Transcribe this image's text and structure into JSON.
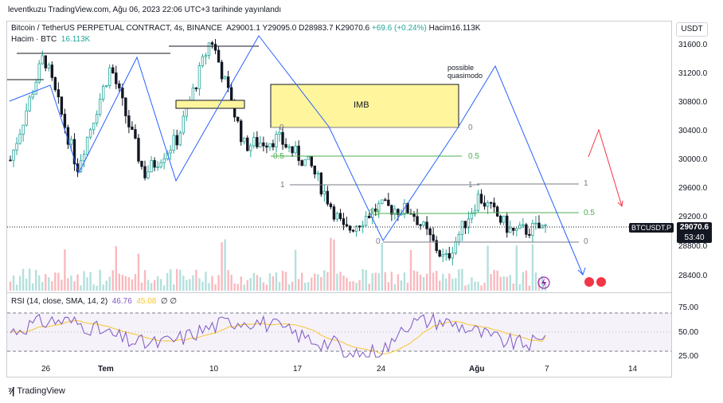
{
  "header": {
    "publish_line": "leventkuzu TradingView.com, Ağu 06, 2023 22:06 UTC+3 tarihinde yayınlandı"
  },
  "legend": {
    "symbol_desc": "Bitcoin / TetherUS PERPETUAL CONTRACT, 4s, BINANCE",
    "open": "A29001.1",
    "high": "Y29095.0",
    "low": "D28983.7",
    "close": "K29070.6",
    "change": "+69.6 (+0.24%)",
    "volume": "Hacim16.113K",
    "vol_label": "Hacim · BTC",
    "vol_value": "16.113K",
    "rsi_label": "RSI (14, close, SMA, 14, 2)",
    "rsi_value": "46.76",
    "rsi_ma": "45.08",
    "rsi_extra": "∅ ∅"
  },
  "currency_button": "USDT",
  "price_axis": [
    "31600.0",
    "31200.0",
    "30800.0",
    "30400.0",
    "30000.0",
    "29600.0",
    "29200.0",
    "28800.0",
    "28400.0"
  ],
  "rsi_axis": [
    "75.00",
    "50.00",
    "25.00"
  ],
  "time_axis": [
    "26",
    "Tem",
    "10",
    "17",
    "24",
    "Ağu",
    "7",
    "14"
  ],
  "price_tag": {
    "symbol": "BTCUSDT.P",
    "price": "29070.6",
    "countdown": "53:40"
  },
  "annotations": {
    "imb": "IMB",
    "possible": "possible",
    "quasimodo": "quasimodo",
    "fib_a": [
      "0",
      "0.5",
      "1"
    ],
    "fib_b": [
      "1",
      "0.5",
      "0"
    ],
    "fib_c": [
      "1",
      "0.5",
      "0"
    ]
  },
  "footer": {
    "brand": "TradingView"
  },
  "colors": {
    "up": "#26a69a",
    "down": "#131722",
    "line": "#2962ff",
    "rsi": "#7e57c2",
    "rsi_ma": "#f7c531",
    "imb_fill": "#fff59d",
    "red": "#f23645",
    "fib_green": "#4caf50"
  },
  "chart_data": [
    {
      "type": "candlestick",
      "title": "Bitcoin / TetherUS PERPETUAL CONTRACT, 4s, BINANCE",
      "ylim": [
        28200,
        31800
      ],
      "x_ticks": [
        "26",
        "Tem",
        "10",
        "17",
        "24",
        "Ağu",
        "7",
        "14"
      ],
      "last_price": 29070.6,
      "approx_path": [
        {
          "x": "26",
          "y": 30000
        },
        {
          "x": "~Jun 26",
          "y": 31450
        },
        {
          "x": "~Jun 28",
          "y": 29900
        },
        {
          "x": "~Jul 3",
          "y": 31300
        },
        {
          "x": "~Jul 7",
          "y": 29800
        },
        {
          "x": "10",
          "y": 30300
        },
        {
          "x": "~Jul 13",
          "y": 31700
        },
        {
          "x": "~Jul 14",
          "y": 30200
        },
        {
          "x": "17",
          "y": 30300
        },
        {
          "x": "~Jul 20",
          "y": 29900
        },
        {
          "x": "24",
          "y": 29000
        },
        {
          "x": "~Jul 26",
          "y": 29350
        },
        {
          "x": "~Jul 31",
          "y": 29300
        },
        {
          "x": "~Aug 1",
          "y": 28600
        },
        {
          "x": "Ağu",
          "y": 29500
        },
        {
          "x": "~Aug 4",
          "y": 29000
        },
        {
          "x": "~Aug 6",
          "y": 29070
        }
      ]
    },
    {
      "type": "line",
      "title": "RSI (14, close, SMA, 14, 2)",
      "ylim": [
        20,
        80
      ],
      "bands": [
        30,
        50,
        70
      ],
      "last_value": 46.76,
      "ma_last_value": 45.08
    }
  ]
}
